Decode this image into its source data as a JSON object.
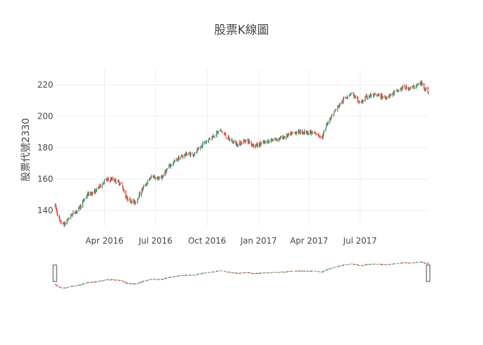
{
  "chart_data": {
    "type": "candlestick",
    "title": "股票K線圖",
    "ylabel": "股票代號2330",
    "xlabel": "",
    "x_range": [
      "2016-01-04",
      "2017-10-31"
    ],
    "ylim": [
      130,
      230
    ],
    "y_ticks": [
      140,
      160,
      180,
      200,
      220
    ],
    "x_ticks": [
      {
        "date": "2016-04-01",
        "label": "Apr 2016"
      },
      {
        "date": "2016-07-01",
        "label": "Jul 2016"
      },
      {
        "date": "2016-10-01",
        "label": "Oct 2016"
      },
      {
        "date": "2017-01-01",
        "label": "Jan 2017"
      },
      {
        "date": "2017-04-01",
        "label": "Apr 2017"
      },
      {
        "date": "2017-07-01",
        "label": "Jul 2017"
      }
    ],
    "grid": true,
    "increasing_color": "#3D9970",
    "decreasing_color": "#FF4136",
    "range_slider": true,
    "price_path": [
      [
        "2016-01-04",
        143
      ],
      [
        "2016-01-12",
        133
      ],
      [
        "2016-01-20",
        131
      ],
      [
        "2016-02-01",
        137
      ],
      [
        "2016-02-15",
        141
      ],
      [
        "2016-03-01",
        150
      ],
      [
        "2016-03-15",
        152
      ],
      [
        "2016-04-01",
        159
      ],
      [
        "2016-04-15",
        160
      ],
      [
        "2016-05-01",
        157
      ],
      [
        "2016-05-10",
        148
      ],
      [
        "2016-05-25",
        145
      ],
      [
        "2016-06-10",
        155
      ],
      [
        "2016-06-25",
        162
      ],
      [
        "2016-07-10",
        160
      ],
      [
        "2016-07-25",
        168
      ],
      [
        "2016-08-10",
        173
      ],
      [
        "2016-08-25",
        176
      ],
      [
        "2016-09-10",
        176
      ],
      [
        "2016-09-25",
        183
      ],
      [
        "2016-10-10",
        187
      ],
      [
        "2016-10-25",
        191
      ],
      [
        "2016-11-10",
        185
      ],
      [
        "2016-11-25",
        182
      ],
      [
        "2016-12-10",
        185
      ],
      [
        "2016-12-25",
        181
      ],
      [
        "2017-01-10",
        183
      ],
      [
        "2017-01-25",
        185
      ],
      [
        "2017-02-10",
        186
      ],
      [
        "2017-02-25",
        188
      ],
      [
        "2017-03-10",
        190
      ],
      [
        "2017-03-25",
        190
      ],
      [
        "2017-04-10",
        189
      ],
      [
        "2017-04-25",
        187
      ],
      [
        "2017-05-05",
        197
      ],
      [
        "2017-05-20",
        205
      ],
      [
        "2017-06-05",
        212
      ],
      [
        "2017-06-15",
        215
      ],
      [
        "2017-07-01",
        208
      ],
      [
        "2017-07-15",
        213
      ],
      [
        "2017-08-01",
        213
      ],
      [
        "2017-08-15",
        212
      ],
      [
        "2017-09-01",
        215
      ],
      [
        "2017-09-15",
        218
      ],
      [
        "2017-10-01",
        218
      ],
      [
        "2017-10-18",
        221
      ],
      [
        "2017-10-31",
        215
      ]
    ]
  }
}
